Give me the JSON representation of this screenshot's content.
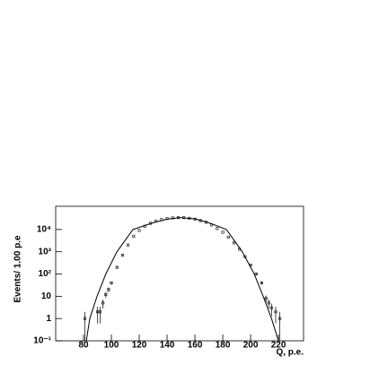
{
  "chart_data": {
    "type": "errorbar-fit",
    "y_label": "Events/ 1.00 p.e",
    "x_label": "Q, p.e.",
    "log_y": true,
    "color": "#000000",
    "xlim": [
      60,
      238
    ],
    "xticks": [
      80,
      100,
      120,
      140,
      160,
      180,
      200,
      220
    ],
    "ylim": [
      0.1,
      110000
    ],
    "yticks": [
      {
        "value": 0.1,
        "label": "10⁻¹"
      },
      1,
      10,
      {
        "value": 100,
        "label": "10²"
      },
      {
        "value": 1000,
        "label": "10³"
      },
      {
        "value": 10000,
        "label": "10⁴"
      }
    ],
    "points": {
      "x": [
        81,
        90,
        92,
        94,
        96,
        98,
        100,
        104,
        108,
        112,
        116,
        120,
        124,
        128,
        132,
        136,
        140,
        144,
        148,
        152,
        156,
        160,
        164,
        168,
        172,
        176,
        180,
        184,
        188,
        192,
        196,
        200,
        204,
        208,
        211,
        213,
        215,
        218,
        221
      ],
      "values": [
        1,
        2,
        2,
        5,
        12,
        20,
        40,
        200,
        700,
        2000,
        5000,
        9000,
        14000,
        19000,
        24000,
        28000,
        31000,
        33000,
        34000,
        34000,
        32000,
        29000,
        25000,
        21000,
        16000,
        11000,
        7500,
        4500,
        2500,
        1300,
        600,
        250,
        100,
        40,
        8,
        5,
        3,
        2,
        1
      ],
      "errors": [
        1,
        1.4,
        1.4,
        2.2,
        3.5,
        4.5,
        6.3,
        14,
        26,
        45,
        71,
        95,
        118,
        138,
        155,
        167,
        176,
        182,
        184,
        184,
        179,
        170,
        158,
        145,
        126,
        105,
        87,
        67,
        50,
        36,
        24,
        16,
        10,
        6.3,
        2.8,
        2.2,
        1.7,
        1.4,
        1
      ]
    },
    "fit": {
      "x": [
        82,
        84.5,
        89.7,
        96,
        104,
        115.5,
        130,
        140,
        149,
        160,
        170,
        182.6,
        194,
        202.6,
        209,
        215,
        220
      ],
      "values": [
        0.1,
        1,
        10,
        100,
        1000,
        10000,
        20000,
        29000,
        34000,
        30000,
        20000,
        10000,
        1000,
        100,
        10,
        1,
        0.1
      ]
    }
  }
}
